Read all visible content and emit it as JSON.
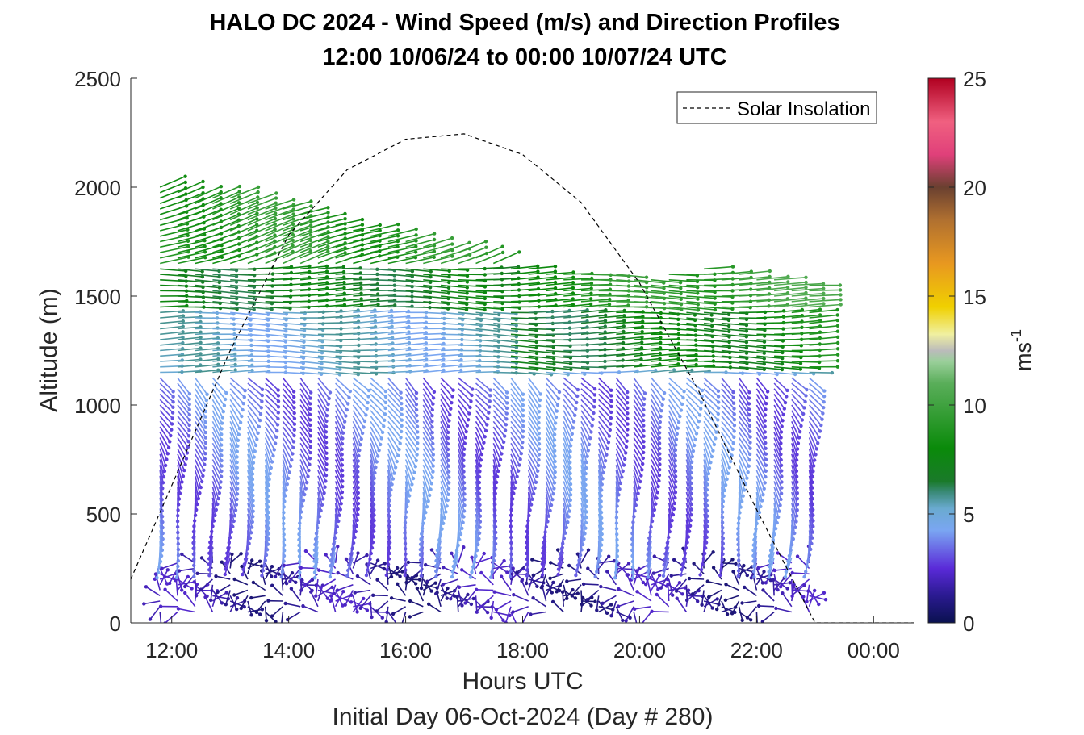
{
  "chart_data": {
    "type": "quiver",
    "title": "HALO DC 2024 - Wind Speed (m/s) and Direction Profiles",
    "subtitle": "12:00 10/06/24 to 00:00 10/07/24  UTC",
    "xlabel": "Hours UTC",
    "xlabel_secondary": "Initial Day 06-Oct-2024 (Day # 280)",
    "ylabel": "Altitude (m)",
    "x_ticks": [
      "12:00",
      "14:00",
      "16:00",
      "18:00",
      "20:00",
      "22:00",
      "00:00"
    ],
    "x_tick_values": [
      12,
      14,
      16,
      18,
      20,
      22,
      24
    ],
    "xlim": [
      11.3,
      24.7
    ],
    "y_ticks": [
      0,
      500,
      1000,
      1500,
      2000,
      2500
    ],
    "ylim": [
      0,
      2500
    ],
    "legend": {
      "label": "Solar Insolation",
      "placement": "top-right"
    },
    "colorbar": {
      "label": "ms",
      "label_sup": "-1",
      "ticks": [
        0,
        5,
        10,
        15,
        20,
        25
      ],
      "range": [
        0,
        25
      ]
    },
    "solar_insolation_curve": [
      [
        11.3,
        200
      ],
      [
        12,
        630
      ],
      [
        13,
        1250
      ],
      [
        14,
        1780
      ],
      [
        15,
        2080
      ],
      [
        16,
        2220
      ],
      [
        17,
        2245
      ],
      [
        18,
        2150
      ],
      [
        19,
        1930
      ],
      [
        20,
        1560
      ],
      [
        21,
        1070
      ],
      [
        22,
        520
      ],
      [
        23,
        0
      ],
      [
        24.7,
        0
      ]
    ],
    "profile_times": [
      11.8,
      12.1,
      12.4,
      12.7,
      13.0,
      13.3,
      13.6,
      13.9,
      14.2,
      14.5,
      14.8,
      15.1,
      15.4,
      15.7,
      16.0,
      16.3,
      16.6,
      16.9,
      17.2,
      17.5,
      17.8,
      18.1,
      18.4,
      18.7,
      19.0,
      19.3,
      19.6,
      19.9,
      20.2,
      20.5,
      20.8,
      21.1,
      21.4,
      21.7,
      22.0,
      22.3,
      22.6,
      22.9
    ],
    "profile_top_altitudes": [
      2000,
      1990,
      1970,
      1960,
      1950,
      1940,
      1920,
      1900,
      1880,
      1860,
      1840,
      1820,
      1800,
      1780,
      1760,
      1740,
      1720,
      1700,
      1680,
      1660,
      1640,
      1630,
      1620,
      1620,
      1620,
      1610,
      1600,
      1590,
      1580,
      1600,
      1620,
      1630,
      1620,
      1600,
      1590,
      1580,
      1570,
      1550
    ],
    "altitude_step_m": 25,
    "speed_layers": [
      {
        "altitude": [
          0,
          300
        ],
        "speed": 1.5,
        "direction": "variable"
      },
      {
        "altitude": [
          300,
          1150
        ],
        "speed": 3.5,
        "direction": "southerly"
      },
      {
        "altitude": [
          1150,
          1450
        ],
        "speed": 5.0,
        "direction": "westerly"
      },
      {
        "altitude": [
          1450,
          1650
        ],
        "speed": 7.0,
        "direction": "westerly"
      },
      {
        "altitude": [
          1650,
          2000
        ],
        "speed": 9.0,
        "direction": "northwesterly"
      }
    ]
  }
}
